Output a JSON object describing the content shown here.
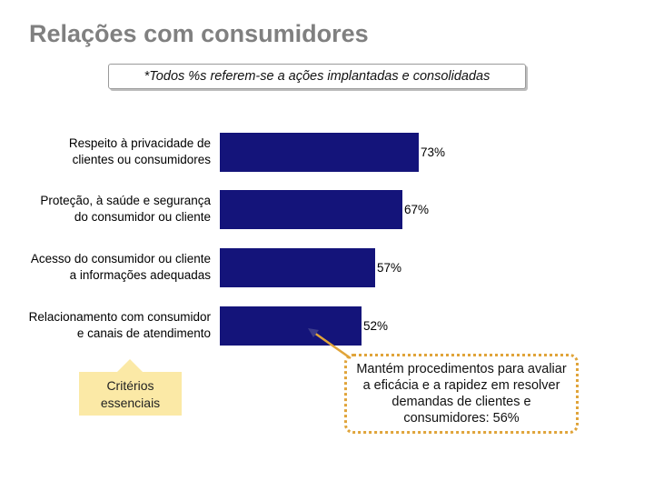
{
  "title": "Relações com consumidores",
  "note": "*Todos %s referem-se a ações implantadas e consolidadas",
  "chart_data": {
    "type": "bar",
    "orientation": "horizontal",
    "categories": [
      [
        "Respeito à privacidade de",
        "clientes ou consumidores"
      ],
      [
        "Proteção, à saúde e segurança",
        "do consumidor ou cliente"
      ],
      [
        "Acesso do consumidor ou cliente",
        "a informações adequadas"
      ],
      [
        "Relacionamento com consumidor",
        "e canais de atendimento"
      ]
    ],
    "values": [
      73,
      67,
      57,
      52
    ],
    "value_labels": [
      "73%",
      "67%",
      "57%",
      "52%"
    ],
    "bar_color": "#14147a",
    "xlim": [
      0,
      100
    ]
  },
  "criteria_badge": {
    "text": "Critérios essenciais",
    "fill": "#fbe9a6"
  },
  "callout": {
    "text": "Mantém procedimentos para avaliar a eficácia e a rapidez em resolver demandas de clientes e consumidores: 56%",
    "border_color": "#e0a43a",
    "arrow_color": "#e0a43a"
  }
}
